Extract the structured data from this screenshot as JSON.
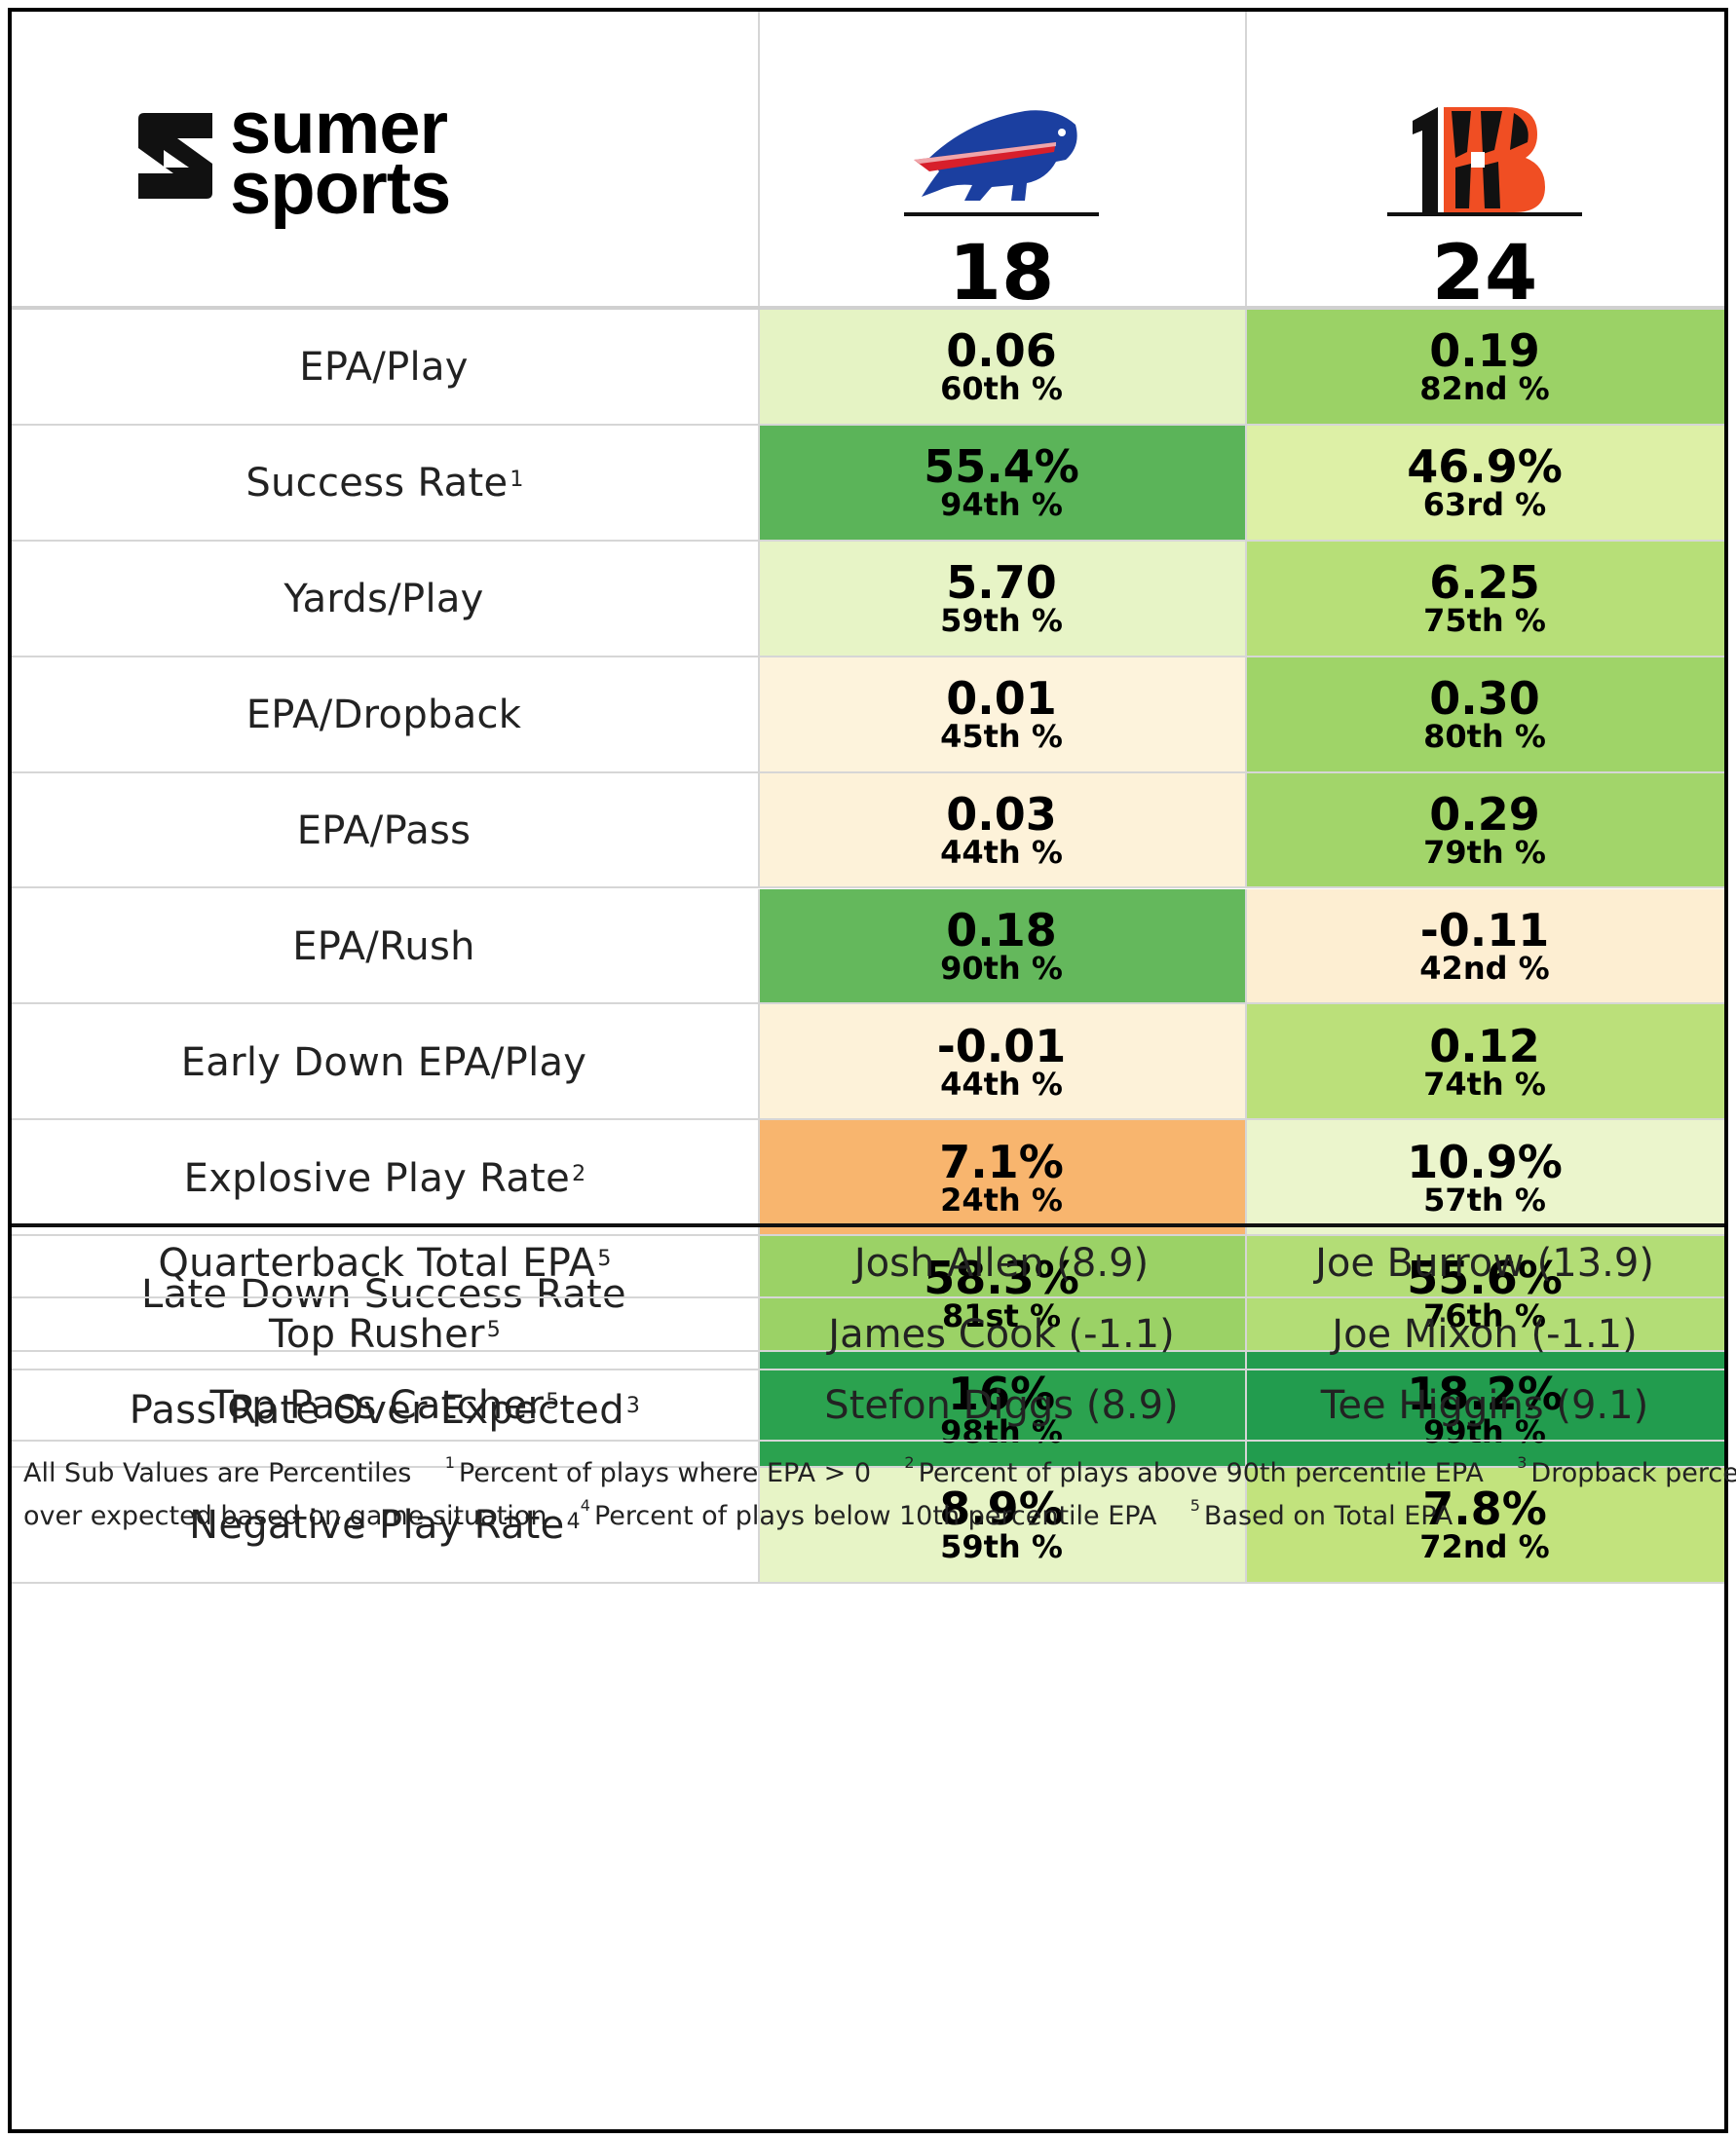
{
  "brand": {
    "line1": "sumer",
    "line2": "sports"
  },
  "teams": [
    {
      "name": "Buffalo Bills logo",
      "score": "18"
    },
    {
      "name": "Cincinnati Bengals logo",
      "score": "24"
    }
  ],
  "stats": [
    {
      "label": "EPA/Play",
      "sup": "",
      "a": {
        "value": "0.06",
        "pct": "60th %",
        "color": "#e5f3c4"
      },
      "b": {
        "value": "0.19",
        "pct": "82nd %",
        "color": "#9bd266"
      }
    },
    {
      "label": "Success Rate",
      "sup": "1",
      "a": {
        "value": "55.4%",
        "pct": "94th %",
        "color": "#5bb459"
      },
      "b": {
        "value": "46.9%",
        "pct": "63rd %",
        "color": "#ddf0a6"
      }
    },
    {
      "label": "Yards/Play",
      "sup": "",
      "a": {
        "value": "5.70",
        "pct": "59th %",
        "color": "#e7f4c6"
      },
      "b": {
        "value": "6.25",
        "pct": "75th %",
        "color": "#b7df78"
      }
    },
    {
      "label": "EPA/Dropback",
      "sup": "",
      "a": {
        "value": "0.01",
        "pct": "45th %",
        "color": "#fdf3dc"
      },
      "b": {
        "value": "0.30",
        "pct": "80th %",
        "color": "#9fd468"
      }
    },
    {
      "label": "EPA/Pass",
      "sup": "",
      "a": {
        "value": "0.03",
        "pct": "44th %",
        "color": "#fdf2d9"
      },
      "b": {
        "value": "0.29",
        "pct": "79th %",
        "color": "#a2d56a"
      }
    },
    {
      "label": "EPA/Rush",
      "sup": "",
      "a": {
        "value": "0.18",
        "pct": "90th %",
        "color": "#64b85c"
      },
      "b": {
        "value": "-0.11",
        "pct": "42nd %",
        "color": "#fdeed2"
      }
    },
    {
      "label": "Early Down EPA/Play",
      "sup": "",
      "a": {
        "value": "-0.01",
        "pct": "44th %",
        "color": "#fdf2d9"
      },
      "b": {
        "value": "0.12",
        "pct": "74th %",
        "color": "#bbe07a"
      }
    },
    {
      "label": "Explosive Play Rate",
      "sup": "2",
      "a": {
        "value": "7.1%",
        "pct": "24th %",
        "color": "#f8b56e"
      },
      "b": {
        "value": "10.9%",
        "pct": "57th %",
        "color": "#ebf5cc"
      }
    },
    {
      "label": "Late Down Success Rate",
      "sup": "",
      "a": {
        "value": "58.3%",
        "pct": "81st %",
        "color": "#9bd266"
      },
      "b": {
        "value": "55.6%",
        "pct": "76th %",
        "color": "#b3dd76"
      }
    },
    {
      "label": "Pass Rate Over Expected",
      "sup": "3",
      "a": {
        "value": "16%",
        "pct": "98th %",
        "color": "#2ba24f"
      },
      "b": {
        "value": "18.2%",
        "pct": "99th %",
        "color": "#229c4e"
      }
    },
    {
      "label": "Negative Play Rate",
      "sup": "4",
      "a": {
        "value": "8.9%",
        "pct": "59th %",
        "color": "#e7f4c6"
      },
      "b": {
        "value": "7.8%",
        "pct": "72nd %",
        "color": "#c2e37d"
      }
    }
  ],
  "players": [
    {
      "label": "Quarterback Total EPA",
      "sup": "5",
      "a": "Josh Allen (8.9)",
      "b": "Joe Burrow (13.9)"
    },
    {
      "label": "Top Rusher",
      "sup": "5",
      "a": "James Cook (-1.1)",
      "b": "Joe Mixon (-1.1)"
    },
    {
      "label": "Top Pass Catcher",
      "sup": "5",
      "a": "Stefon Diggs (8.9)",
      "b": "Tee Higgins (9.1)"
    }
  ],
  "footnotes": {
    "lead": "All Sub Values are Percentiles",
    "n1": "Percent of plays where EPA > 0",
    "n2": "Percent of plays above 90th percentile EPA",
    "n3a": "Dropback percent",
    "n3b": "over expected based on game situation",
    "n4": "Percent of plays below 10th percentile EPA",
    "n5": "Based on Total EPA",
    "m1": "1",
    "m2": "2",
    "m3": "3",
    "m4": "4",
    "m5": "5"
  }
}
